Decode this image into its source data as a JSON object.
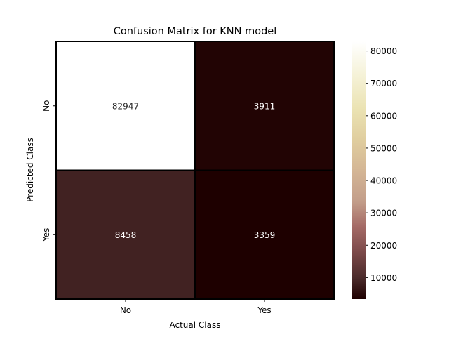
{
  "chart_data": {
    "type": "heatmap",
    "title": "Confusion Matrix for KNN model",
    "xlabel": "Actual Class",
    "ylabel": "Predicted Class",
    "x_categories": [
      "No",
      "Yes"
    ],
    "y_categories": [
      "No",
      "Yes"
    ],
    "values": [
      [
        82947,
        3911
      ],
      [
        8458,
        3359
      ]
    ],
    "colorbar": {
      "range": [
        3359,
        82947
      ],
      "ticks": [
        10000,
        20000,
        30000,
        40000,
        50000,
        60000,
        70000,
        80000
      ],
      "tick_labels": [
        "10000",
        "20000",
        "30000",
        "40000",
        "50000",
        "60000",
        "70000",
        "80000"
      ],
      "colormap": "pink"
    },
    "annotation_colors": {
      "light_cell": "#262626",
      "dark_cell": "#ffffff"
    }
  }
}
